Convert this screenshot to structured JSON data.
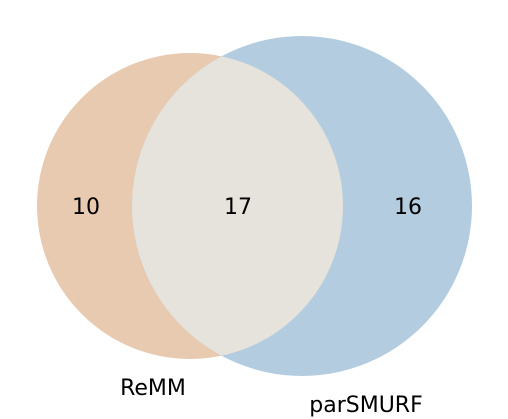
{
  "venn": {
    "sets": [
      {
        "name": "ReMM",
        "color": "#e8cab0"
      },
      {
        "name": "parSMURF",
        "color": "#b4cce0"
      }
    ],
    "intersection_color": "#e6e2dc",
    "counts": {
      "only_a": "10",
      "both": "17",
      "only_b": "16"
    }
  }
}
